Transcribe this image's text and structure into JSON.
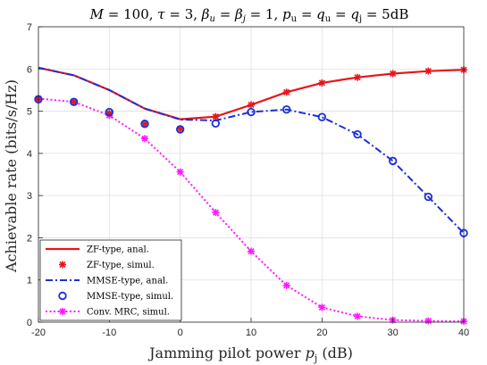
{
  "chart_data": {
    "type": "line",
    "title": "M = 100, τ = 3, β_u = β_j = 1, p_u = q_u = q_j = 5dB",
    "xlabel": "Jamming pilot power p_j (dB)",
    "ylabel": "Achievable rate (bits/s/Hz)",
    "xlim": [
      -20,
      40
    ],
    "ylim": [
      0,
      7
    ],
    "xticks": [
      -20,
      -10,
      0,
      10,
      20,
      30,
      40
    ],
    "yticks": [
      0,
      1,
      2,
      3,
      4,
      5,
      6,
      7
    ],
    "xtick_labels": [
      "-20",
      "-10",
      "0",
      "10",
      "20",
      "30",
      "40"
    ],
    "ytick_labels": [
      "0",
      "1",
      "2",
      "3",
      "4",
      "5",
      "6",
      "7"
    ],
    "grid": true,
    "legend_position": "bottom-left",
    "series": [
      {
        "name": "ZF-type, anal.",
        "style": "solid-line",
        "color": "#e8141a",
        "x": [
          -20,
          -15,
          -10,
          -5,
          0,
          5,
          10,
          15,
          20,
          25,
          30,
          35,
          40
        ],
        "y": [
          6.03,
          5.85,
          5.5,
          5.06,
          4.81,
          4.87,
          5.15,
          5.45,
          5.67,
          5.8,
          5.89,
          5.95,
          5.98
        ]
      },
      {
        "name": "ZF-type, simul.",
        "style": "star-marker",
        "color": "#e8141a",
        "x": [
          -20,
          -15,
          -10,
          -5,
          0,
          5,
          10,
          15,
          20,
          25,
          30,
          35,
          40
        ],
        "y": [
          5.28,
          5.22,
          4.95,
          4.7,
          4.58,
          4.87,
          5.15,
          5.45,
          5.67,
          5.8,
          5.89,
          5.95,
          5.98
        ]
      },
      {
        "name": "MMSE-type, anal.",
        "style": "dashdot-line",
        "color": "#1c2fd8",
        "x": [
          -20,
          -15,
          -10,
          -5,
          0,
          5,
          10,
          15,
          20,
          25,
          30,
          35,
          40
        ],
        "y": [
          6.03,
          5.85,
          5.5,
          5.06,
          4.8,
          4.78,
          4.98,
          5.04,
          4.86,
          4.45,
          3.82,
          2.97,
          2.11
        ]
      },
      {
        "name": "MMSE-type, simul.",
        "style": "circle-marker",
        "color": "#1c2fd8",
        "x": [
          -20,
          -15,
          -10,
          -5,
          0,
          5,
          10,
          15,
          20,
          25,
          30,
          35,
          40
        ],
        "y": [
          5.28,
          5.22,
          4.98,
          4.7,
          4.57,
          4.71,
          4.98,
          5.04,
          4.86,
          4.45,
          3.82,
          2.97,
          2.11
        ]
      },
      {
        "name": "Conv. MRC, simul.",
        "style": "dotted-line-star",
        "color": "#ff18ff",
        "x": [
          -20,
          -15,
          -10,
          -5,
          0,
          5,
          10,
          15,
          20,
          25,
          30,
          35,
          40
        ],
        "y": [
          5.3,
          5.22,
          4.9,
          4.35,
          3.56,
          2.6,
          1.68,
          0.87,
          0.35,
          0.14,
          0.05,
          0.03,
          0.02
        ]
      }
    ]
  }
}
